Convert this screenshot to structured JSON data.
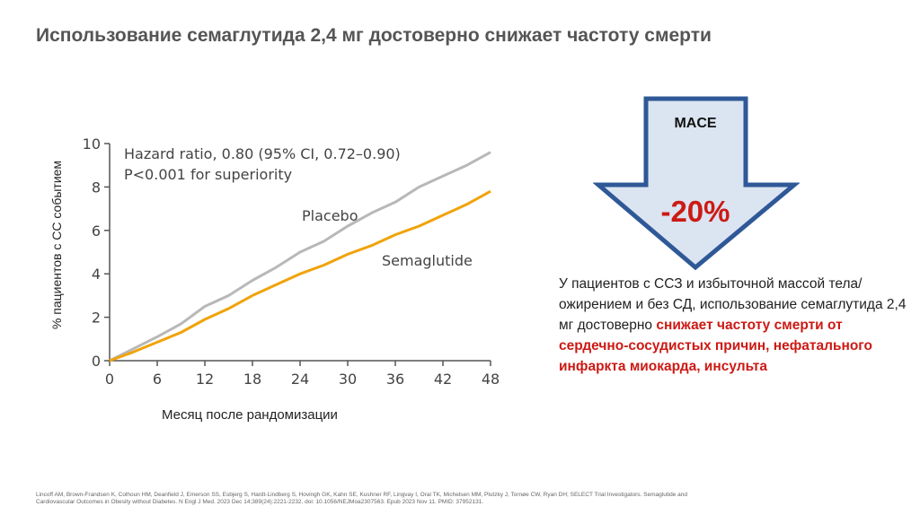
{
  "title": "Использование семаглутида 2,4 мг достоверно снижает частоту смерти",
  "chart_data": {
    "type": "line",
    "ylabel": "% пациентов с СС событием",
    "xlabel": "Месяц после рандомизации",
    "xlim": [
      0,
      48
    ],
    "ylim": [
      0,
      10
    ],
    "xticks": [
      0,
      6,
      12,
      18,
      24,
      30,
      36,
      42,
      48
    ],
    "yticks": [
      0,
      2,
      4,
      6,
      8,
      10
    ],
    "annotation_line1": "Hazard ratio, 0.80 (95% CI, 0.72–0.90)",
    "annotation_line2": "P<0.001 for superiority",
    "colors": {
      "Placebo": "#b8b8b8",
      "Semaglutide": "#f0a30a"
    },
    "series": [
      {
        "name": "Placebo",
        "x": [
          0,
          3,
          6,
          9,
          12,
          15,
          18,
          21,
          24,
          27,
          30,
          33,
          36,
          39,
          42,
          45,
          48
        ],
        "y": [
          0,
          0.55,
          1.1,
          1.7,
          2.5,
          3.0,
          3.7,
          4.3,
          5.0,
          5.5,
          6.2,
          6.8,
          7.3,
          8.0,
          8.5,
          9.0,
          9.6
        ]
      },
      {
        "name": "Semaglutide",
        "x": [
          0,
          3,
          6,
          9,
          12,
          15,
          18,
          21,
          24,
          27,
          30,
          33,
          36,
          39,
          42,
          45,
          48
        ],
        "y": [
          0,
          0.4,
          0.85,
          1.3,
          1.9,
          2.4,
          3.0,
          3.5,
          4.0,
          4.4,
          4.9,
          5.3,
          5.8,
          6.2,
          6.7,
          7.2,
          7.8
        ]
      }
    ]
  },
  "mace": {
    "label": "MACE",
    "value": "-20%"
  },
  "description": {
    "plain": "У пациентов с ССЗ и избыточной массой тела/ожирением и без СД, использование семаглутида 2,4 мг достоверно",
    "highlight": "снижает частоту смерти от сердечно-сосудистых причин, нефатального инфаркта миокарда, инсульта"
  },
  "reference": "Lincoff AM, Brown-Frandsen K, Colhoun HM, Deanfield J, Emerson SS, Esbjerg S, Hardt-Lindberg S, Hovingh GK, Kahn SE, Kushner RF, Lingvay I, Oral TK, Michelsen MM, Plutzky J, Tornøe CW, Ryan DH; SELECT Trial Investigators. Semaglutide and Cardiovascular Outcomes in Obesity without Diabetes. N Engl J Med. 2023 Dec 14;389(24):2221-2232. doi: 10.1056/NEJMoa2307563. Epub 2023 Nov 11. PMID: 37952131."
}
